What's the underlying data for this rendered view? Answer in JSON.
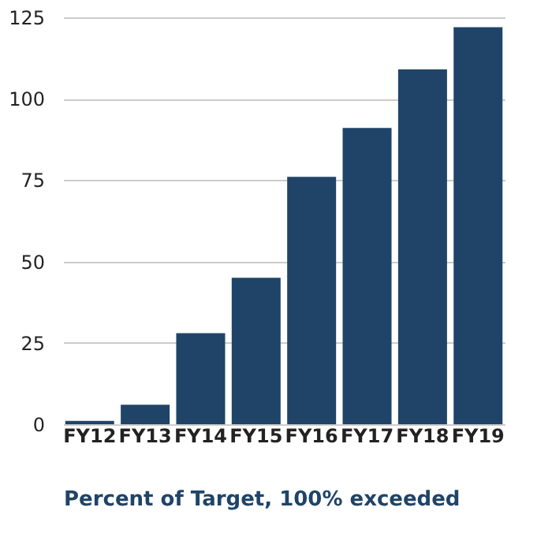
{
  "chart_data": {
    "type": "bar",
    "categories": [
      "FY12",
      "FY13",
      "FY14",
      "FY15",
      "FY16",
      "FY17",
      "FY18",
      "FY19"
    ],
    "values": [
      1,
      6,
      28,
      45,
      76,
      91,
      109,
      122
    ],
    "color": "#1f4468",
    "ylim": [
      0,
      125
    ],
    "yticks": [
      0,
      25,
      50,
      75,
      100,
      125
    ],
    "grid": "y",
    "xlabel": "Percent of Target, 100% exceeded"
  }
}
